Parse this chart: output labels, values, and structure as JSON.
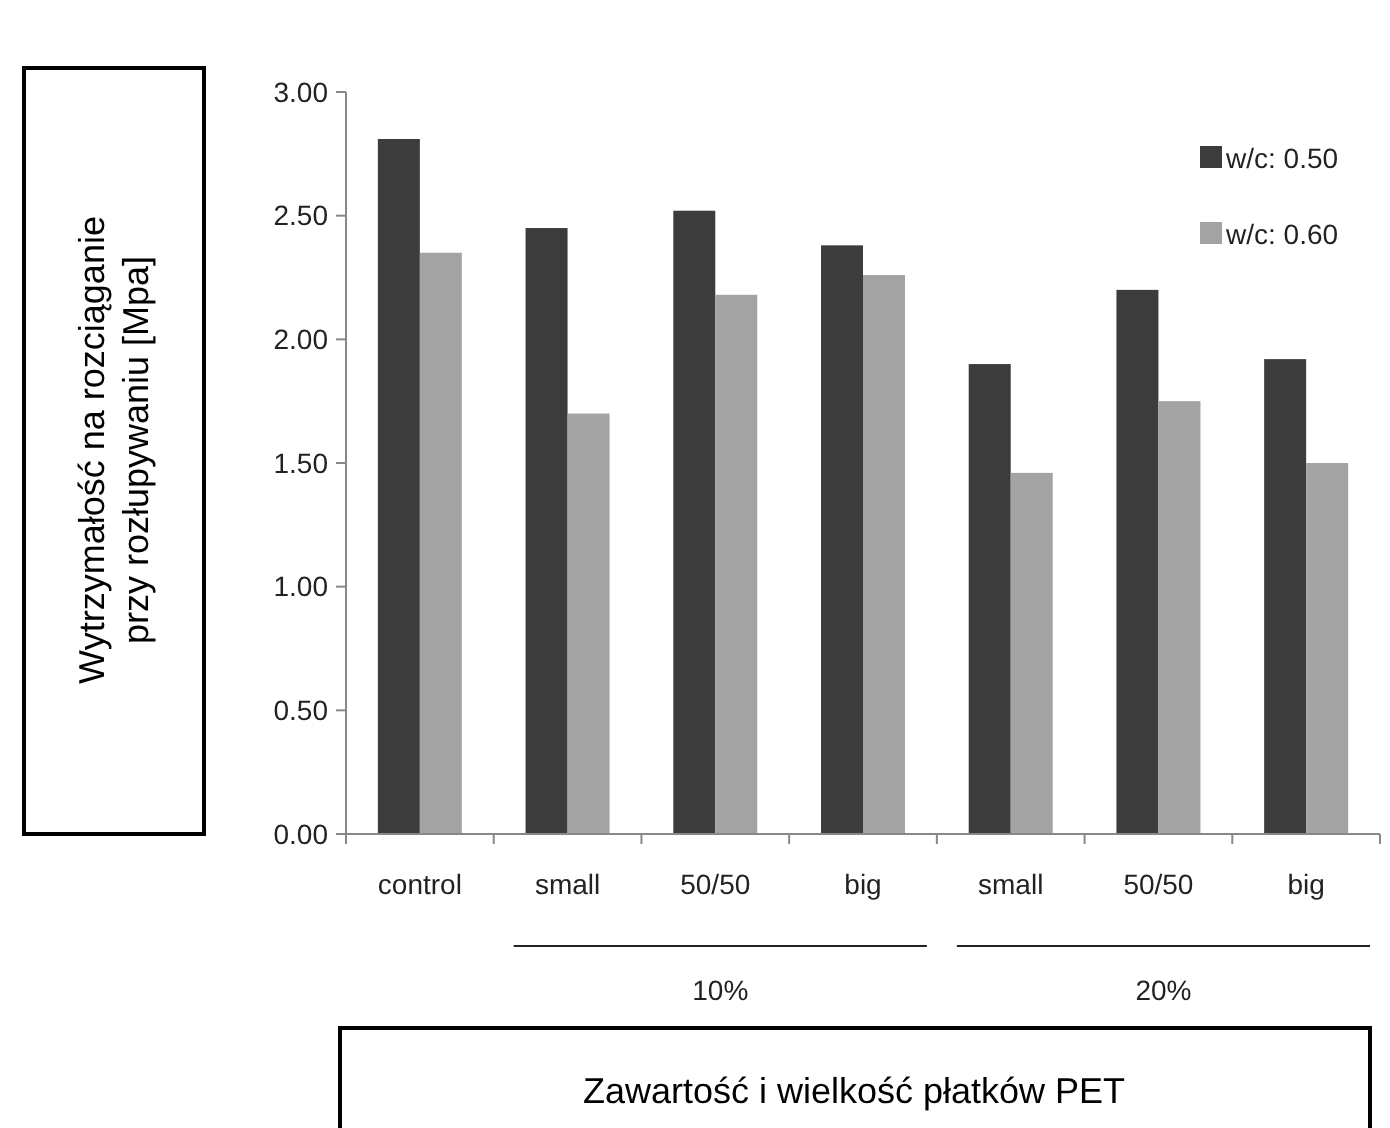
{
  "chart_data": {
    "type": "bar",
    "xlabel": "Zawartość i wielkość płatków PET",
    "ylabel": "Wytrzymałość na rozciąganie\nprzy rozłupywaniu [Mpa]",
    "categories": [
      "control",
      "small",
      "50/50",
      "big",
      "small",
      "50/50",
      "big"
    ],
    "series": [
      {
        "name": "w/c: 0.50",
        "color": "#3c3c3c",
        "values": [
          2.81,
          2.45,
          2.52,
          2.38,
          1.9,
          2.2,
          1.92
        ]
      },
      {
        "name": "w/c: 0.60",
        "color": "#a3a3a3",
        "values": [
          2.35,
          1.7,
          2.18,
          2.26,
          1.46,
          1.75,
          1.5
        ]
      }
    ],
    "ylim": [
      0,
      3
    ],
    "yticks": [
      {
        "value": 0,
        "label": "0.00"
      },
      {
        "value": 0.5,
        "label": "0.50"
      },
      {
        "value": 1,
        "label": "1.00"
      },
      {
        "value": 1.5,
        "label": "1.50"
      },
      {
        "value": 2,
        "label": "2.00"
      },
      {
        "value": 2.5,
        "label": "2.50"
      },
      {
        "value": 3,
        "label": "3.00"
      }
    ],
    "annotations": [
      "10%",
      "20%"
    ],
    "grid": false,
    "legend": "top right"
  }
}
